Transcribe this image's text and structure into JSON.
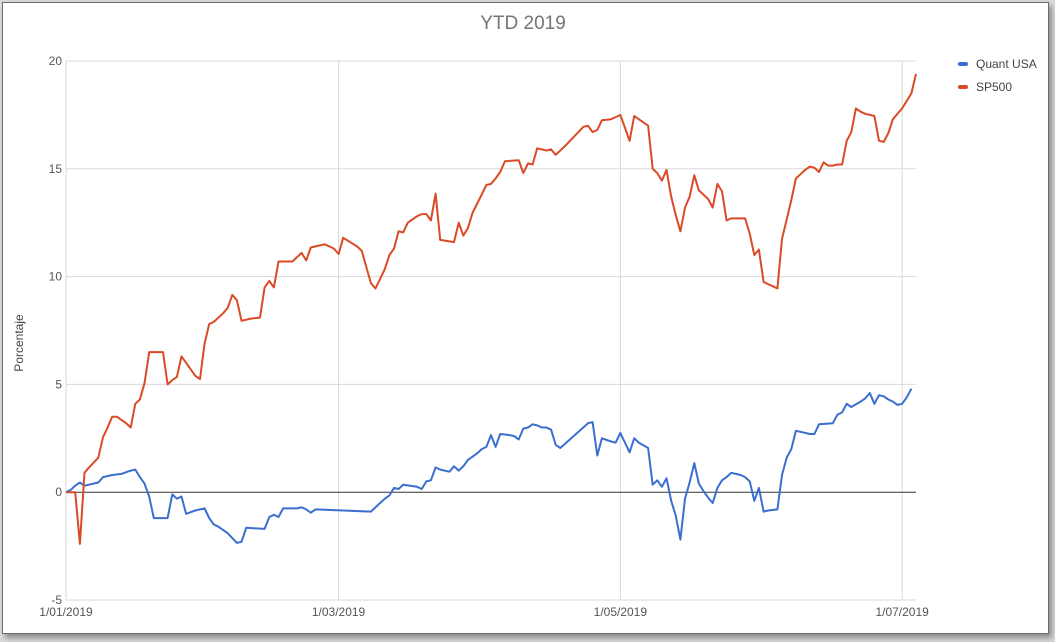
{
  "chart_data": {
    "type": "line",
    "title": "YTD 2019",
    "ylabel": "Porcentaje",
    "xlabel": "",
    "ylim": [
      -5,
      20
    ],
    "yticks": [
      -5,
      0,
      5,
      10,
      15,
      20
    ],
    "xticks": [
      {
        "label": "1/01/2019",
        "day": 0
      },
      {
        "label": "1/03/2019",
        "day": 59
      },
      {
        "label": "1/05/2019",
        "day": 120
      },
      {
        "label": "1/07/2019",
        "day": 181
      }
    ],
    "grid": true,
    "legend_position": "right",
    "series": [
      {
        "name": "Quant USA",
        "color": "#3b6fcf",
        "points": [
          [
            0,
            0
          ],
          [
            1,
            0.1
          ],
          [
            2,
            0.3
          ],
          [
            3,
            0.45
          ],
          [
            4,
            0.3
          ],
          [
            7,
            0.45
          ],
          [
            8,
            0.7
          ],
          [
            10,
            0.8
          ],
          [
            12,
            0.85
          ],
          [
            14,
            1.0
          ],
          [
            15,
            1.05
          ],
          [
            16,
            0.7
          ],
          [
            17,
            0.4
          ],
          [
            18,
            -0.2
          ],
          [
            19,
            -1.2
          ],
          [
            22,
            -1.2
          ],
          [
            23,
            -0.1
          ],
          [
            24,
            -0.3
          ],
          [
            25,
            -0.2
          ],
          [
            26,
            -1.0
          ],
          [
            28,
            -0.85
          ],
          [
            30,
            -0.75
          ],
          [
            31,
            -1.2
          ],
          [
            32,
            -1.5
          ],
          [
            33,
            -1.6
          ],
          [
            35,
            -1.9
          ],
          [
            37,
            -2.35
          ],
          [
            38,
            -2.3
          ],
          [
            39,
            -1.65
          ],
          [
            43,
            -1.7
          ],
          [
            44,
            -1.15
          ],
          [
            45,
            -1.05
          ],
          [
            46,
            -1.15
          ],
          [
            47,
            -0.75
          ],
          [
            50,
            -0.75
          ],
          [
            51,
            -0.7
          ],
          [
            52,
            -0.8
          ],
          [
            53,
            -0.95
          ],
          [
            54,
            -0.8
          ],
          [
            66,
            -0.9
          ],
          [
            68,
            -0.5
          ],
          [
            69,
            -0.3
          ],
          [
            70,
            -0.15
          ],
          [
            71,
            0.2
          ],
          [
            72,
            0.15
          ],
          [
            73,
            0.35
          ],
          [
            76,
            0.25
          ],
          [
            77,
            0.15
          ],
          [
            78,
            0.5
          ],
          [
            79,
            0.55
          ],
          [
            80,
            1.15
          ],
          [
            81,
            1.05
          ],
          [
            83,
            0.95
          ],
          [
            84,
            1.2
          ],
          [
            85,
            1.0
          ],
          [
            86,
            1.2
          ],
          [
            87,
            1.5
          ],
          [
            89,
            1.8
          ],
          [
            90,
            2.0
          ],
          [
            91,
            2.1
          ],
          [
            92,
            2.65
          ],
          [
            93,
            2.1
          ],
          [
            94,
            2.7
          ],
          [
            96,
            2.65
          ],
          [
            97,
            2.6
          ],
          [
            98,
            2.45
          ],
          [
            99,
            2.95
          ],
          [
            100,
            3.0
          ],
          [
            101,
            3.15
          ],
          [
            102,
            3.1
          ],
          [
            103,
            3.0
          ],
          [
            104,
            3.0
          ],
          [
            105,
            2.9
          ],
          [
            106,
            2.2
          ],
          [
            107,
            2.05
          ],
          [
            113,
            3.2
          ],
          [
            114,
            3.25
          ],
          [
            115,
            1.7
          ],
          [
            116,
            2.5
          ],
          [
            118,
            2.35
          ],
          [
            119,
            2.3
          ],
          [
            120,
            2.75
          ],
          [
            122,
            1.85
          ],
          [
            123,
            2.5
          ],
          [
            124,
            2.3
          ],
          [
            126,
            2.05
          ],
          [
            127,
            0.35
          ],
          [
            128,
            0.55
          ],
          [
            129,
            0.25
          ],
          [
            130,
            0.65
          ],
          [
            131,
            -0.4
          ],
          [
            132,
            -1.1
          ],
          [
            133,
            -2.2
          ],
          [
            134,
            -0.3
          ],
          [
            135,
            0.45
          ],
          [
            136,
            1.35
          ],
          [
            137,
            0.4
          ],
          [
            138,
            0.05
          ],
          [
            139,
            -0.25
          ],
          [
            140,
            -0.5
          ],
          [
            141,
            0.2
          ],
          [
            142,
            0.55
          ],
          [
            143,
            0.7
          ],
          [
            144,
            0.9
          ],
          [
            145,
            0.85
          ],
          [
            146,
            0.8
          ],
          [
            147,
            0.7
          ],
          [
            148,
            0.5
          ],
          [
            149,
            -0.4
          ],
          [
            150,
            0.2
          ],
          [
            151,
            -0.9
          ],
          [
            152,
            -0.85
          ],
          [
            154,
            -0.8
          ],
          [
            155,
            0.8
          ],
          [
            156,
            1.6
          ],
          [
            157,
            2.0
          ],
          [
            158,
            2.85
          ],
          [
            160,
            2.75
          ],
          [
            161,
            2.7
          ],
          [
            162,
            2.7
          ],
          [
            163,
            3.15
          ],
          [
            166,
            3.2
          ],
          [
            167,
            3.6
          ],
          [
            168,
            3.7
          ],
          [
            169,
            4.1
          ],
          [
            170,
            3.95
          ],
          [
            172,
            4.2
          ],
          [
            173,
            4.35
          ],
          [
            174,
            4.6
          ],
          [
            175,
            4.1
          ],
          [
            176,
            4.5
          ],
          [
            177,
            4.45
          ],
          [
            178,
            4.3
          ],
          [
            179,
            4.2
          ],
          [
            180,
            4.05
          ],
          [
            181,
            4.1
          ],
          [
            182,
            4.4
          ],
          [
            183,
            4.8
          ]
        ]
      },
      {
        "name": "SP500",
        "color": "#db4a26",
        "points": [
          [
            0,
            0
          ],
          [
            2,
            0
          ],
          [
            3,
            -2.4
          ],
          [
            4,
            0.9
          ],
          [
            5,
            1.15
          ],
          [
            7,
            1.6
          ],
          [
            8,
            2.55
          ],
          [
            9,
            3.0
          ],
          [
            10,
            3.5
          ],
          [
            11,
            3.5
          ],
          [
            13,
            3.2
          ],
          [
            14,
            3.0
          ],
          [
            15,
            4.1
          ],
          [
            16,
            4.3
          ],
          [
            17,
            5.05
          ],
          [
            18,
            6.5
          ],
          [
            21,
            6.5
          ],
          [
            22,
            5.0
          ],
          [
            23,
            5.2
          ],
          [
            24,
            5.35
          ],
          [
            25,
            6.3
          ],
          [
            26,
            6.0
          ],
          [
            27,
            5.7
          ],
          [
            28,
            5.4
          ],
          [
            29,
            5.25
          ],
          [
            30,
            6.9
          ],
          [
            31,
            7.8
          ],
          [
            32,
            7.9
          ],
          [
            34,
            8.3
          ],
          [
            35,
            8.55
          ],
          [
            36,
            9.15
          ],
          [
            37,
            8.9
          ],
          [
            38,
            7.95
          ],
          [
            40,
            8.05
          ],
          [
            42,
            8.1
          ],
          [
            43,
            9.5
          ],
          [
            44,
            9.8
          ],
          [
            45,
            9.5
          ],
          [
            46,
            10.7
          ],
          [
            49,
            10.7
          ],
          [
            51,
            11.1
          ],
          [
            52,
            10.75
          ],
          [
            53,
            11.35
          ],
          [
            54,
            11.4
          ],
          [
            56,
            11.5
          ],
          [
            57,
            11.4
          ],
          [
            58,
            11.3
          ],
          [
            59,
            11.05
          ],
          [
            60,
            11.8
          ],
          [
            63,
            11.4
          ],
          [
            64,
            11.2
          ],
          [
            66,
            9.7
          ],
          [
            67,
            9.45
          ],
          [
            69,
            10.35
          ],
          [
            70,
            11.0
          ],
          [
            71,
            11.3
          ],
          [
            72,
            12.1
          ],
          [
            73,
            12.05
          ],
          [
            74,
            12.5
          ],
          [
            76,
            12.8
          ],
          [
            77,
            12.9
          ],
          [
            78,
            12.9
          ],
          [
            79,
            12.6
          ],
          [
            80,
            13.85
          ],
          [
            81,
            11.7
          ],
          [
            84,
            11.6
          ],
          [
            85,
            12.5
          ],
          [
            86,
            11.9
          ],
          [
            87,
            12.25
          ],
          [
            88,
            12.95
          ],
          [
            91,
            14.25
          ],
          [
            92,
            14.3
          ],
          [
            93,
            14.55
          ],
          [
            94,
            14.85
          ],
          [
            95,
            15.35
          ],
          [
            98,
            15.4
          ],
          [
            99,
            14.8
          ],
          [
            100,
            15.25
          ],
          [
            101,
            15.2
          ],
          [
            102,
            15.95
          ],
          [
            104,
            15.85
          ],
          [
            105,
            15.9
          ],
          [
            106,
            15.65
          ],
          [
            108,
            16.05
          ],
          [
            112,
            16.95
          ],
          [
            113,
            17.0
          ],
          [
            114,
            16.7
          ],
          [
            115,
            16.8
          ],
          [
            116,
            17.25
          ],
          [
            118,
            17.3
          ],
          [
            119,
            17.4
          ],
          [
            120,
            17.5
          ],
          [
            121,
            16.9
          ],
          [
            122,
            16.3
          ],
          [
            123,
            17.45
          ],
          [
            126,
            17.0
          ],
          [
            127,
            15.0
          ],
          [
            128,
            14.8
          ],
          [
            129,
            14.45
          ],
          [
            130,
            14.95
          ],
          [
            131,
            13.7
          ],
          [
            132,
            12.85
          ],
          [
            133,
            12.1
          ],
          [
            134,
            13.2
          ],
          [
            135,
            13.7
          ],
          [
            136,
            14.7
          ],
          [
            137,
            14.0
          ],
          [
            139,
            13.6
          ],
          [
            140,
            13.2
          ],
          [
            141,
            14.3
          ],
          [
            142,
            13.95
          ],
          [
            143,
            12.6
          ],
          [
            144,
            12.7
          ],
          [
            146,
            12.7
          ],
          [
            147,
            12.7
          ],
          [
            148,
            12.0
          ],
          [
            149,
            11.0
          ],
          [
            150,
            11.25
          ],
          [
            151,
            9.75
          ],
          [
            153,
            9.55
          ],
          [
            154,
            9.45
          ],
          [
            155,
            11.75
          ],
          [
            156,
            12.65
          ],
          [
            157,
            13.55
          ],
          [
            158,
            14.55
          ],
          [
            159,
            14.75
          ],
          [
            160,
            14.95
          ],
          [
            161,
            15.1
          ],
          [
            162,
            15.05
          ],
          [
            163,
            14.85
          ],
          [
            164,
            15.3
          ],
          [
            165,
            15.15
          ],
          [
            166,
            15.15
          ],
          [
            167,
            15.2
          ],
          [
            168,
            15.2
          ],
          [
            169,
            16.3
          ],
          [
            170,
            16.7
          ],
          [
            171,
            17.8
          ],
          [
            172,
            17.65
          ],
          [
            173,
            17.55
          ],
          [
            174,
            17.5
          ],
          [
            175,
            17.45
          ],
          [
            176,
            16.3
          ],
          [
            177,
            16.25
          ],
          [
            178,
            16.65
          ],
          [
            179,
            17.3
          ],
          [
            181,
            17.8
          ],
          [
            182,
            18.15
          ],
          [
            183,
            18.5
          ],
          [
            184,
            19.4
          ]
        ]
      }
    ]
  }
}
